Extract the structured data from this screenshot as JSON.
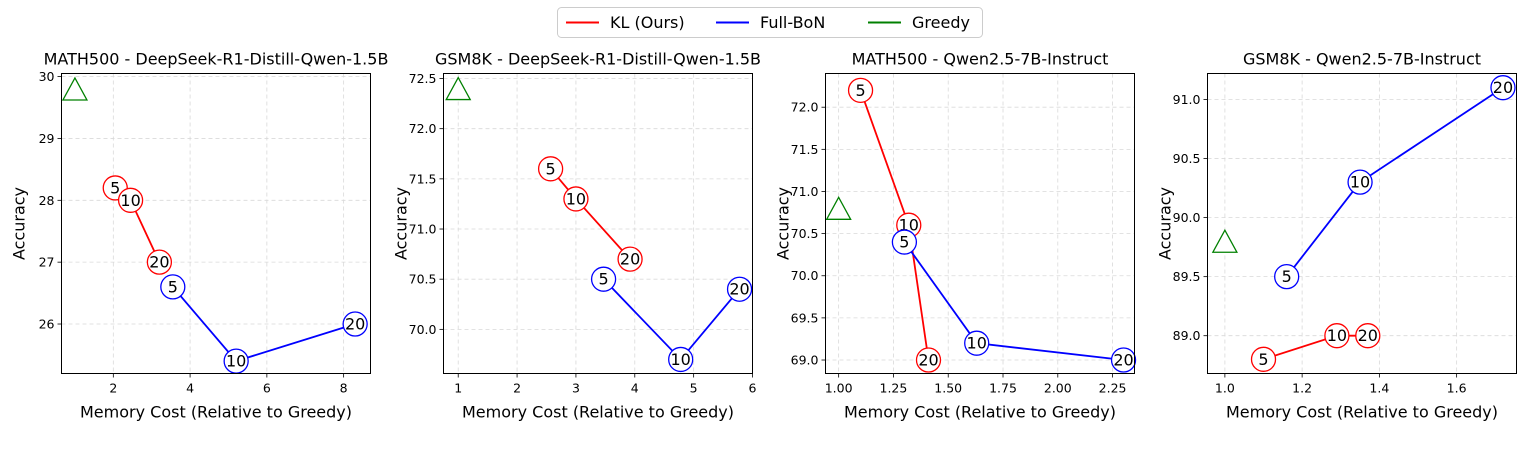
{
  "legend": {
    "entries": [
      {
        "label": "KL (Ours)",
        "color": "#ff0000"
      },
      {
        "label": "Full-BoN",
        "color": "#0000ff"
      },
      {
        "label": "Greedy",
        "color": "#008000"
      }
    ]
  },
  "chart_data": [
    {
      "type": "line",
      "title": "MATH500 - DeepSeek-R1-Distill-Qwen-1.5B",
      "xlabel": "Memory Cost (Relative to Greedy)",
      "ylabel": "Accuracy",
      "xlim": [
        0.65,
        8.7
      ],
      "ylim": [
        25.2,
        30.05
      ],
      "xticks": [
        2,
        4,
        6,
        8
      ],
      "xtick_labels": [
        "2",
        "4",
        "6",
        "8"
      ],
      "yticks": [
        26,
        27,
        28,
        29,
        30
      ],
      "ytick_labels": [
        "26",
        "27",
        "28",
        "29",
        "30"
      ],
      "grid": true,
      "series": [
        {
          "name": "KL (Ours)",
          "color": "#ff0000",
          "points": [
            {
              "x": 2.05,
              "y": 28.2,
              "label": "5"
            },
            {
              "x": 2.45,
              "y": 28.0,
              "label": "10"
            },
            {
              "x": 3.2,
              "y": 27.0,
              "label": "20"
            }
          ]
        },
        {
          "name": "Full-BoN",
          "color": "#0000ff",
          "points": [
            {
              "x": 3.55,
              "y": 26.6,
              "label": "5"
            },
            {
              "x": 5.2,
              "y": 25.4,
              "label": "10"
            },
            {
              "x": 8.3,
              "y": 26.0,
              "label": "20"
            }
          ]
        }
      ],
      "greedy": {
        "x": 1.0,
        "y": 29.8,
        "color": "#008000"
      }
    },
    {
      "type": "line",
      "title": "GSM8K - DeepSeek-R1-Distill-Qwen-1.5B",
      "xlabel": "Memory Cost (Relative to Greedy)",
      "ylabel": "Accuracy",
      "xlim": [
        0.75,
        6.0
      ],
      "ylim": [
        69.56,
        72.55
      ],
      "xticks": [
        1,
        2,
        3,
        4,
        5,
        6
      ],
      "xtick_labels": [
        "1",
        "2",
        "3",
        "4",
        "5",
        "6"
      ],
      "yticks": [
        70.0,
        70.5,
        71.0,
        71.5,
        72.0,
        72.5
      ],
      "ytick_labels": [
        "70.0",
        "70.5",
        "71.0",
        "71.5",
        "72.0",
        "72.5"
      ],
      "grid": true,
      "series": [
        {
          "name": "KL (Ours)",
          "color": "#ff0000",
          "points": [
            {
              "x": 2.57,
              "y": 71.6,
              "label": "5"
            },
            {
              "x": 3.0,
              "y": 71.3,
              "label": "10"
            },
            {
              "x": 3.92,
              "y": 70.7,
              "label": "20"
            }
          ]
        },
        {
          "name": "Full-BoN",
          "color": "#0000ff",
          "points": [
            {
              "x": 3.47,
              "y": 70.5,
              "label": "5"
            },
            {
              "x": 4.78,
              "y": 69.7,
              "label": "10"
            },
            {
              "x": 5.78,
              "y": 70.4,
              "label": "20"
            }
          ]
        }
      ],
      "greedy": {
        "x": 1.0,
        "y": 72.4,
        "color": "#008000"
      }
    },
    {
      "type": "line",
      "title": "MATH500 - Qwen2.5-7B-Instruct",
      "xlabel": "Memory Cost (Relative to Greedy)",
      "ylabel": "Accuracy",
      "xlim": [
        0.94,
        2.35
      ],
      "ylim": [
        68.84,
        72.4
      ],
      "xticks": [
        1.0,
        1.25,
        1.5,
        1.75,
        2.0,
        2.25
      ],
      "xtick_labels": [
        "1.00",
        "1.25",
        "1.50",
        "1.75",
        "2.00",
        "2.25"
      ],
      "yticks": [
        69.0,
        69.5,
        70.0,
        70.5,
        71.0,
        71.5,
        72.0
      ],
      "ytick_labels": [
        "69.0",
        "69.5",
        "70.0",
        "70.5",
        "71.0",
        "71.5",
        "72.0"
      ],
      "grid": true,
      "series": [
        {
          "name": "KL (Ours)",
          "color": "#ff0000",
          "points": [
            {
              "x": 1.1,
              "y": 72.2,
              "label": "5"
            },
            {
              "x": 1.32,
              "y": 70.6,
              "label": "10"
            },
            {
              "x": 1.41,
              "y": 69.0,
              "label": "20"
            }
          ]
        },
        {
          "name": "Full-BoN",
          "color": "#0000ff",
          "points": [
            {
              "x": 1.3,
              "y": 70.4,
              "label": "5"
            },
            {
              "x": 1.63,
              "y": 69.2,
              "label": "10"
            },
            {
              "x": 2.3,
              "y": 69.0,
              "label": "20"
            }
          ]
        }
      ],
      "greedy": {
        "x": 1.0,
        "y": 70.8,
        "color": "#008000"
      }
    },
    {
      "type": "line",
      "title": "GSM8K - Qwen2.5-7B-Instruct",
      "xlabel": "Memory Cost (Relative to Greedy)",
      "ylabel": "Accuracy",
      "xlim": [
        0.955,
        1.755
      ],
      "ylim": [
        88.68,
        91.22
      ],
      "xticks": [
        1.0,
        1.2,
        1.4,
        1.6
      ],
      "xtick_labels": [
        "1.0",
        "1.2",
        "1.4",
        "1.6"
      ],
      "yticks": [
        89.0,
        89.5,
        90.0,
        90.5,
        91.0
      ],
      "ytick_labels": [
        "89.0",
        "89.5",
        "90.0",
        "90.5",
        "91.0"
      ],
      "grid": true,
      "series": [
        {
          "name": "KL (Ours)",
          "color": "#ff0000",
          "points": [
            {
              "x": 1.1,
              "y": 88.8,
              "label": "5"
            },
            {
              "x": 1.29,
              "y": 89.0,
              "label": "10"
            },
            {
              "x": 1.37,
              "y": 89.0,
              "label": "20"
            }
          ]
        },
        {
          "name": "Full-BoN",
          "color": "#0000ff",
          "points": [
            {
              "x": 1.16,
              "y": 89.5,
              "label": "5"
            },
            {
              "x": 1.35,
              "y": 90.3,
              "label": "10"
            },
            {
              "x": 1.72,
              "y": 91.1,
              "label": "20"
            }
          ]
        }
      ],
      "greedy": {
        "x": 1.0,
        "y": 89.8,
        "color": "#008000"
      }
    }
  ]
}
